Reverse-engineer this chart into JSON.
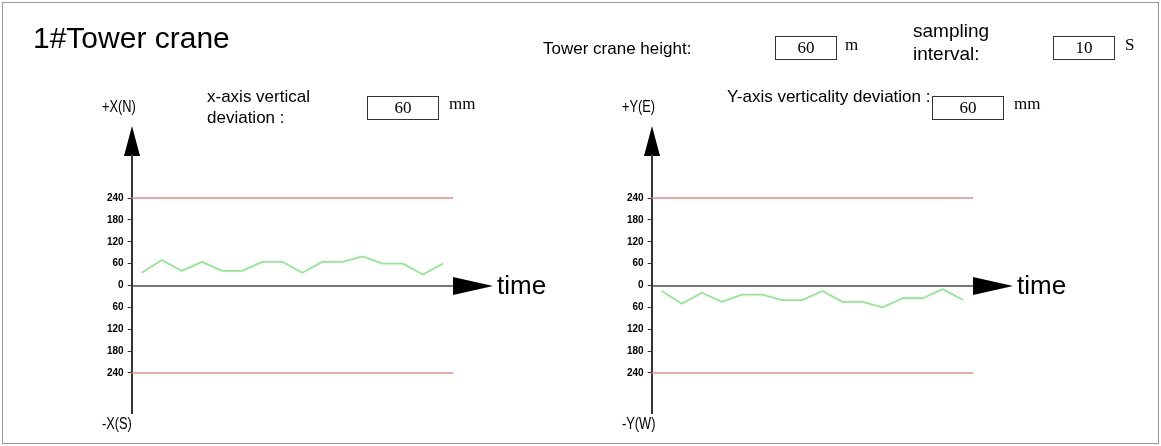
{
  "chart_data": [
    {
      "type": "other",
      "title": "1#Tower crane",
      "annotations": [
        "Tower crane height:",
        "60",
        "m",
        "sampling interval:",
        "10",
        "S"
      ]
    },
    {
      "type": "line",
      "xlabel": "time",
      "annotations": [
        "+X(N)",
        "-X(S)",
        "x-axis vertical deviation :",
        "60",
        "mm"
      ],
      "categories": [
        null,
        null,
        null,
        null,
        null,
        null,
        null,
        null,
        null,
        null,
        null,
        null,
        null,
        null,
        null,
        null
      ],
      "series": [
        {
          "color": "#90e890",
          "values": [
            35,
            70,
            40,
            65,
            40,
            40,
            65,
            65,
            35,
            65,
            65,
            80,
            60,
            60,
            30,
            60
          ]
        }
      ],
      "ylim": [
        -350,
        350
      ],
      "yticks": [
        {
          "value": -240,
          "label": "240"
        },
        {
          "value": -180,
          "label": "180"
        },
        {
          "value": -120,
          "label": "120"
        },
        {
          "value": -60,
          "label": "60"
        },
        0,
        60,
        120,
        180,
        240
      ],
      "ref_lines": [
        {
          "axis": "y",
          "value": 240,
          "color": "#e08c8c"
        },
        {
          "axis": "y",
          "value": -240,
          "color": "#e08c8c"
        }
      ],
      "grid": false,
      "tick_labels": "y",
      "marker": "none"
    },
    {
      "type": "line",
      "xlabel": "time",
      "annotations": [
        "+Y(E)",
        "-Y(W)",
        "Y-axis verticality deviation :",
        "60",
        "mm"
      ],
      "categories": [
        null,
        null,
        null,
        null,
        null,
        null,
        null,
        null,
        null,
        null,
        null,
        null,
        null,
        null,
        null,
        null
      ],
      "series": [
        {
          "color": "#90e890",
          "values": [
            -15,
            -50,
            -20,
            -45,
            -25,
            -25,
            -40,
            -40,
            -15,
            -45,
            -45,
            -60,
            -35,
            -35,
            -10,
            -40
          ]
        }
      ],
      "ylim": [
        -350,
        350
      ],
      "yticks": [
        {
          "value": -240,
          "label": "240"
        },
        {
          "value": -180,
          "label": "180"
        },
        {
          "value": -120,
          "label": "120"
        },
        {
          "value": -60,
          "label": "60"
        },
        0,
        60,
        120,
        180,
        240
      ],
      "ref_lines": [
        {
          "axis": "y",
          "value": 240,
          "color": "#e08c8c"
        },
        {
          "axis": "y",
          "value": -240,
          "color": "#e08c8c"
        }
      ],
      "grid": false,
      "tick_labels": "y",
      "marker": "none"
    }
  ]
}
